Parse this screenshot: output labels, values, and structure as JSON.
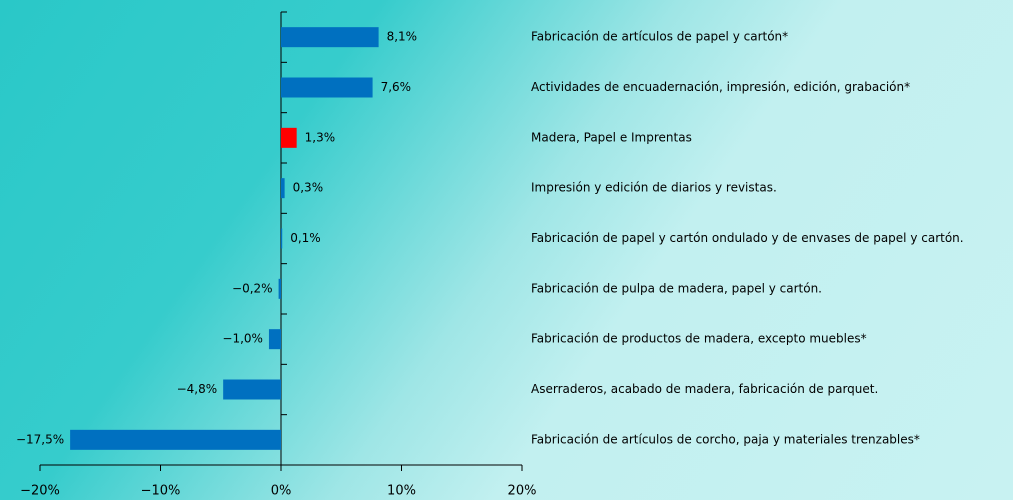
{
  "chart_data": {
    "type": "hbar",
    "categories": [
      "Fabricación de artículos de papel y cartón*",
      "Actividades de encuadernación, impresión, edición, grabación*",
      "Madera, Papel e Imprentas",
      "Impresión y edición de diarios y revistas.",
      "Fabricación de papel y cartón ondulado y de envases de papel y cartón.",
      "Fabricación de pulpa de madera, papel y cartón.",
      "Fabricación de productos de madera, excepto muebles*",
      "Aserraderos, acabado de madera, fabricación de parquet.",
      "Fabricación de artículos de corcho, paja y materiales trenzables*"
    ],
    "values": [
      8.1,
      7.6,
      1.3,
      0.3,
      0.1,
      -0.2,
      -1.0,
      -4.8,
      -17.5
    ],
    "value_labels": [
      "8,1%",
      "7,6%",
      "1,3%",
      "0,3%",
      "0,1%",
      "−0,2%",
      "−1,0%",
      "−4,8%",
      "−17,5%"
    ],
    "colors": [
      "#0070c0",
      "#0070c0",
      "#ff0000",
      "#0070c0",
      "#0070c0",
      "#0070c0",
      "#0070c0",
      "#0070c0",
      "#0070c0"
    ],
    "xlim": [
      -20,
      20
    ],
    "xticks": [
      {
        "value": -20,
        "label": "−20%"
      },
      {
        "value": -10,
        "label": "−10%"
      },
      {
        "value": 0,
        "label": "0%"
      },
      {
        "value": 10,
        "label": "10%"
      },
      {
        "value": 20,
        "label": "20%"
      }
    ]
  }
}
